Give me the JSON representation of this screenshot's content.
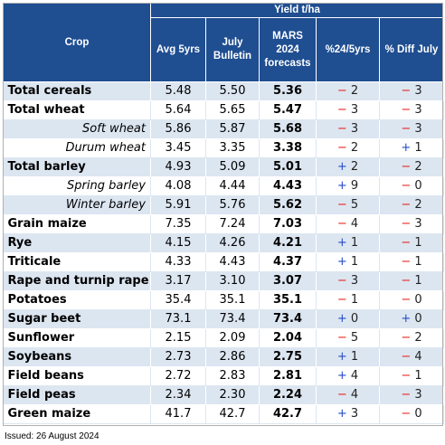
{
  "header": {
    "group_label": "Yield t/ha",
    "crop": "Crop",
    "avg5": "Avg 5yrs",
    "july_bulletin": "July Bulletin",
    "mars_forecast": "MARS 2024 forecasts",
    "pct_24_5": "%24/5yrs",
    "pct_diff_july": "% Diff July"
  },
  "rows": [
    {
      "name": "Total cereals",
      "style": "bold",
      "avg": "5.48",
      "july": "5.50",
      "fc": "5.36",
      "d1s": "−",
      "d1v": "2",
      "d1c": "neg",
      "d2s": "−",
      "d2v": "3",
      "d2c": "neg"
    },
    {
      "name": "Total wheat",
      "style": "bold",
      "avg": "5.64",
      "july": "5.65",
      "fc": "5.47",
      "d1s": "−",
      "d1v": "3",
      "d1c": "neg",
      "d2s": "−",
      "d2v": "3",
      "d2c": "neg"
    },
    {
      "name": "Soft wheat",
      "style": "sub",
      "avg": "5.86",
      "july": "5.87",
      "fc": "5.68",
      "d1s": "−",
      "d1v": "3",
      "d1c": "neg",
      "d2s": "−",
      "d2v": "3",
      "d2c": "neg"
    },
    {
      "name": "Durum wheat",
      "style": "sub",
      "avg": "3.45",
      "july": "3.35",
      "fc": "3.38",
      "d1s": "−",
      "d1v": "2",
      "d1c": "neg",
      "d2s": "+",
      "d2v": "1",
      "d2c": "pos"
    },
    {
      "name": "Total barley",
      "style": "bold",
      "avg": "4.93",
      "july": "5.09",
      "fc": "5.01",
      "d1s": "+",
      "d1v": "2",
      "d1c": "pos",
      "d2s": "−",
      "d2v": "2",
      "d2c": "neg"
    },
    {
      "name": "Spring barley",
      "style": "sub",
      "avg": "4.08",
      "july": "4.44",
      "fc": "4.43",
      "d1s": "+",
      "d1v": "9",
      "d1c": "pos",
      "d2s": "−",
      "d2v": "0",
      "d2c": "neg"
    },
    {
      "name": "Winter barley",
      "style": "sub",
      "avg": "5.91",
      "july": "5.76",
      "fc": "5.62",
      "d1s": "−",
      "d1v": "5",
      "d1c": "neg",
      "d2s": "−",
      "d2v": "2",
      "d2c": "neg"
    },
    {
      "name": "Grain maize",
      "style": "bold",
      "avg": "7.35",
      "july": "7.24",
      "fc": "7.03",
      "d1s": "−",
      "d1v": "4",
      "d1c": "neg",
      "d2s": "−",
      "d2v": "3",
      "d2c": "neg"
    },
    {
      "name": "Rye",
      "style": "bold",
      "avg": "4.15",
      "july": "4.26",
      "fc": "4.21",
      "d1s": "+",
      "d1v": "1",
      "d1c": "pos",
      "d2s": "−",
      "d2v": "1",
      "d2c": "neg"
    },
    {
      "name": "Triticale",
      "style": "bold",
      "avg": "4.33",
      "july": "4.43",
      "fc": "4.37",
      "d1s": "+",
      "d1v": "1",
      "d1c": "pos",
      "d2s": "−",
      "d2v": "1",
      "d2c": "neg"
    },
    {
      "name": "Rape and turnip rape",
      "style": "bold",
      "avg": "3.17",
      "july": "3.10",
      "fc": "3.07",
      "d1s": "−",
      "d1v": "3",
      "d1c": "neg",
      "d2s": "−",
      "d2v": "1",
      "d2c": "neg"
    },
    {
      "name": "Potatoes",
      "style": "bold",
      "avg": "35.4",
      "july": "35.1",
      "fc": "35.1",
      "d1s": "−",
      "d1v": "1",
      "d1c": "neg",
      "d2s": "−",
      "d2v": "0",
      "d2c": "neg"
    },
    {
      "name": "Sugar beet",
      "style": "bold",
      "avg": "73.1",
      "july": "73.4",
      "fc": "73.4",
      "d1s": "+",
      "d1v": "0",
      "d1c": "pos",
      "d2s": "+",
      "d2v": "0",
      "d2c": "pos"
    },
    {
      "name": "Sunflower",
      "style": "bold",
      "avg": "2.15",
      "july": "2.09",
      "fc": "2.04",
      "d1s": "−",
      "d1v": "5",
      "d1c": "neg",
      "d2s": "−",
      "d2v": "2",
      "d2c": "neg"
    },
    {
      "name": "Soybeans",
      "style": "bold",
      "avg": "2.73",
      "july": "2.86",
      "fc": "2.75",
      "d1s": "+",
      "d1v": "1",
      "d1c": "pos",
      "d2s": "−",
      "d2v": "4",
      "d2c": "neg"
    },
    {
      "name": "Field beans",
      "style": "bold",
      "avg": "2.72",
      "july": "2.83",
      "fc": "2.81",
      "d1s": "+",
      "d1v": "4",
      "d1c": "pos",
      "d2s": "−",
      "d2v": "1",
      "d2c": "neg"
    },
    {
      "name": "Field peas",
      "style": "bold",
      "avg": "2.34",
      "july": "2.30",
      "fc": "2.24",
      "d1s": "−",
      "d1v": "4",
      "d1c": "neg",
      "d2s": "−",
      "d2v": "3",
      "d2c": "neg"
    },
    {
      "name": "Green maize",
      "style": "bold",
      "avg": "41.7",
      "july": "42.7",
      "fc": "42.7",
      "d1s": "+",
      "d1v": "3",
      "d1c": "pos",
      "d2s": "−",
      "d2v": "0",
      "d2c": "neg"
    }
  ],
  "footer": {
    "issued": "Issued: 26 August 2024"
  },
  "colors": {
    "header_bg": "#1f4e91",
    "band": "#dce6f1",
    "negative": "#e8221b",
    "positive": "#2449c6"
  }
}
